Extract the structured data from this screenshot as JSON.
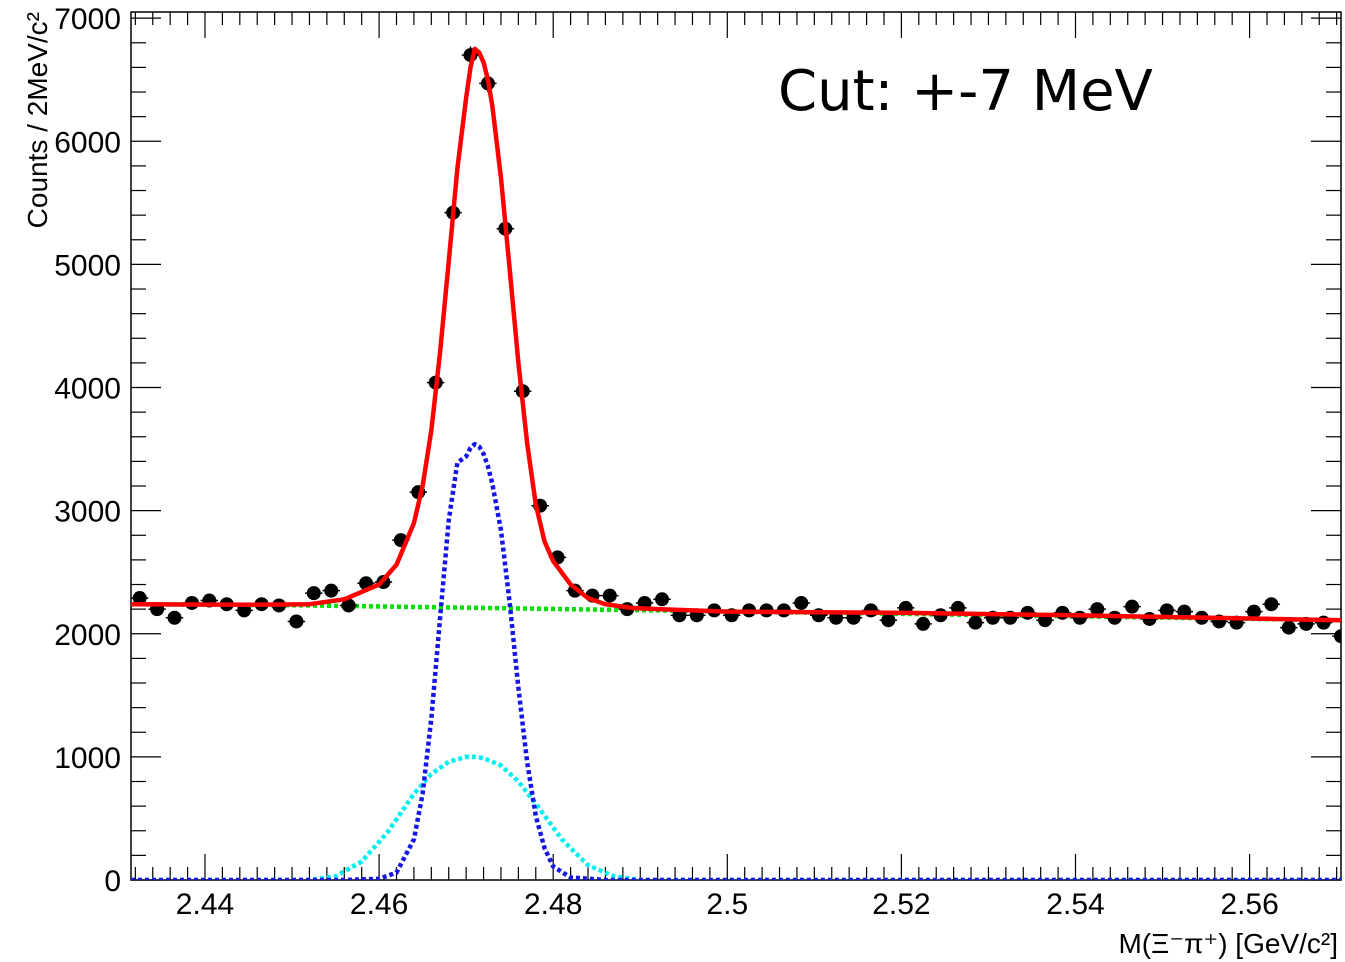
{
  "chart_data": {
    "type": "scatter",
    "title": "",
    "annotation": "Cut: +-7 MeV",
    "xlabel": "M(Ξ⁻π⁺) [GeV/c²]",
    "ylabel": "Counts / 2MeV/c²",
    "xlim": [
      2.4315,
      2.5705
    ],
    "ylim": [
      0,
      7050
    ],
    "grid": false,
    "legend": "none",
    "x_ticks": [
      2.44,
      2.46,
      2.48,
      2.5,
      2.52,
      2.54,
      2.56
    ],
    "x_tick_labels": [
      "2.44",
      "2.46",
      "2.48",
      "2.5",
      "2.52",
      "2.54",
      "2.56"
    ],
    "y_ticks": [
      0,
      1000,
      2000,
      3000,
      4000,
      5000,
      6000,
      7000
    ],
    "y_tick_labels": [
      "0",
      "1000",
      "2000",
      "3000",
      "4000",
      "5000",
      "6000",
      "7000"
    ],
    "series": [
      {
        "kind": "points",
        "color": "#000000",
        "bin_half_width": 0.001,
        "x": [
          2.4325,
          2.4345,
          2.4365,
          2.4385,
          2.4405,
          2.4425,
          2.4445,
          2.4465,
          2.4485,
          2.4505,
          2.4525,
          2.4545,
          2.4565,
          2.4585,
          2.4605,
          2.4625,
          2.4645,
          2.4665,
          2.4685,
          2.4705,
          2.4725,
          2.4745,
          2.4765,
          2.4785,
          2.4805,
          2.4825,
          2.4845,
          2.4865,
          2.4885,
          2.4905,
          2.4925,
          2.4945,
          2.4965,
          2.4985,
          2.5005,
          2.5025,
          2.5045,
          2.5065,
          2.5085,
          2.5105,
          2.5125,
          2.5145,
          2.5165,
          2.5185,
          2.5205,
          2.5225,
          2.5245,
          2.5265,
          2.5285,
          2.5305,
          2.5325,
          2.5345,
          2.5365,
          2.5385,
          2.5405,
          2.5425,
          2.5445,
          2.5465,
          2.5485,
          2.5505,
          2.5525,
          2.5545,
          2.5565,
          2.5585,
          2.5605,
          2.5625,
          2.5645,
          2.5665,
          2.5685,
          2.5705
        ],
        "y": [
          2290,
          2200,
          2130,
          2250,
          2270,
          2240,
          2190,
          2240,
          2230,
          2100,
          2330,
          2350,
          2230,
          2410,
          2420,
          2760,
          3150,
          4040,
          5420,
          6700,
          6470,
          5290,
          3970,
          3040,
          2620,
          2350,
          2310,
          2310,
          2200,
          2250,
          2280,
          2150,
          2150,
          2190,
          2150,
          2190,
          2190,
          2190,
          2250,
          2150,
          2130,
          2130,
          2190,
          2110,
          2210,
          2080,
          2150,
          2210,
          2090,
          2130,
          2130,
          2170,
          2110,
          2170,
          2130,
          2200,
          2130,
          2220,
          2120,
          2190,
          2180,
          2130,
          2100,
          2090,
          2180,
          2240,
          2050,
          2080,
          2090,
          1980
        ],
        "err": [
          40,
          40,
          40,
          40,
          40,
          40,
          40,
          40,
          40,
          40,
          40,
          40,
          40,
          40,
          40,
          45,
          45,
          50,
          60,
          70,
          70,
          60,
          50,
          45,
          45,
          40,
          40,
          40,
          40,
          40,
          40,
          40,
          40,
          40,
          40,
          40,
          40,
          40,
          40,
          40,
          40,
          40,
          40,
          40,
          40,
          40,
          40,
          40,
          40,
          40,
          40,
          40,
          40,
          40,
          40,
          40,
          40,
          40,
          40,
          40,
          40,
          40,
          40,
          40,
          40,
          40,
          40,
          40,
          40,
          40
        ]
      },
      {
        "kind": "line",
        "color": "#00e000",
        "dashed": true,
        "x": [
          2.4315,
          2.4515,
          2.4715,
          2.4915,
          2.5115,
          2.5315,
          2.5515,
          2.5705
        ],
        "y": [
          2240,
          2230,
          2210,
          2190,
          2170,
          2150,
          2130,
          2110
        ]
      },
      {
        "kind": "line",
        "color": "#1515e6",
        "dashed": true,
        "x": [
          2.4315,
          2.456,
          2.46,
          2.462,
          2.464,
          2.465,
          2.466,
          2.467,
          2.468,
          2.469,
          2.47,
          2.4705,
          2.471,
          2.4715,
          2.472,
          2.4725,
          2.473,
          2.474,
          2.475,
          2.476,
          2.477,
          2.478,
          2.479,
          2.48,
          2.482,
          2.486,
          2.5705
        ],
        "y": [
          0,
          0,
          10,
          60,
          330,
          700,
          1310,
          2120,
          2920,
          3390,
          3440,
          3510,
          3540,
          3520,
          3460,
          3360,
          3220,
          2840,
          2250,
          1560,
          960,
          520,
          260,
          110,
          20,
          0,
          0
        ]
      },
      {
        "kind": "line",
        "color": "#00f0f0",
        "dashed": true,
        "x": [
          2.4315,
          2.452,
          2.455,
          2.458,
          2.461,
          2.464,
          2.466,
          2.468,
          2.47,
          2.471,
          2.472,
          2.474,
          2.476,
          2.478,
          2.481,
          2.484,
          2.487,
          2.49,
          2.5705
        ],
        "y": [
          0,
          0,
          30,
          150,
          390,
          700,
          860,
          960,
          1000,
          1000,
          990,
          930,
          800,
          620,
          330,
          120,
          30,
          0,
          0
        ]
      },
      {
        "kind": "line",
        "color": "#ff0000",
        "dashed": false,
        "x": [
          2.4315,
          2.445,
          2.452,
          2.456,
          2.46,
          2.462,
          2.464,
          2.465,
          2.466,
          2.467,
          2.468,
          2.469,
          2.47,
          2.4705,
          2.471,
          2.4715,
          2.472,
          2.4725,
          2.473,
          2.474,
          2.475,
          2.476,
          2.477,
          2.478,
          2.479,
          2.48,
          2.482,
          2.484,
          2.486,
          2.489,
          2.492,
          2.5,
          2.52,
          2.54,
          2.5705
        ],
        "y": [
          2240,
          2235,
          2240,
          2280,
          2400,
          2560,
          2900,
          3200,
          3650,
          4280,
          5020,
          5780,
          6350,
          6600,
          6750,
          6720,
          6640,
          6500,
          6290,
          5700,
          4960,
          4200,
          3550,
          3050,
          2750,
          2590,
          2400,
          2290,
          2240,
          2210,
          2200,
          2180,
          2170,
          2150,
          2110
        ]
      }
    ]
  }
}
